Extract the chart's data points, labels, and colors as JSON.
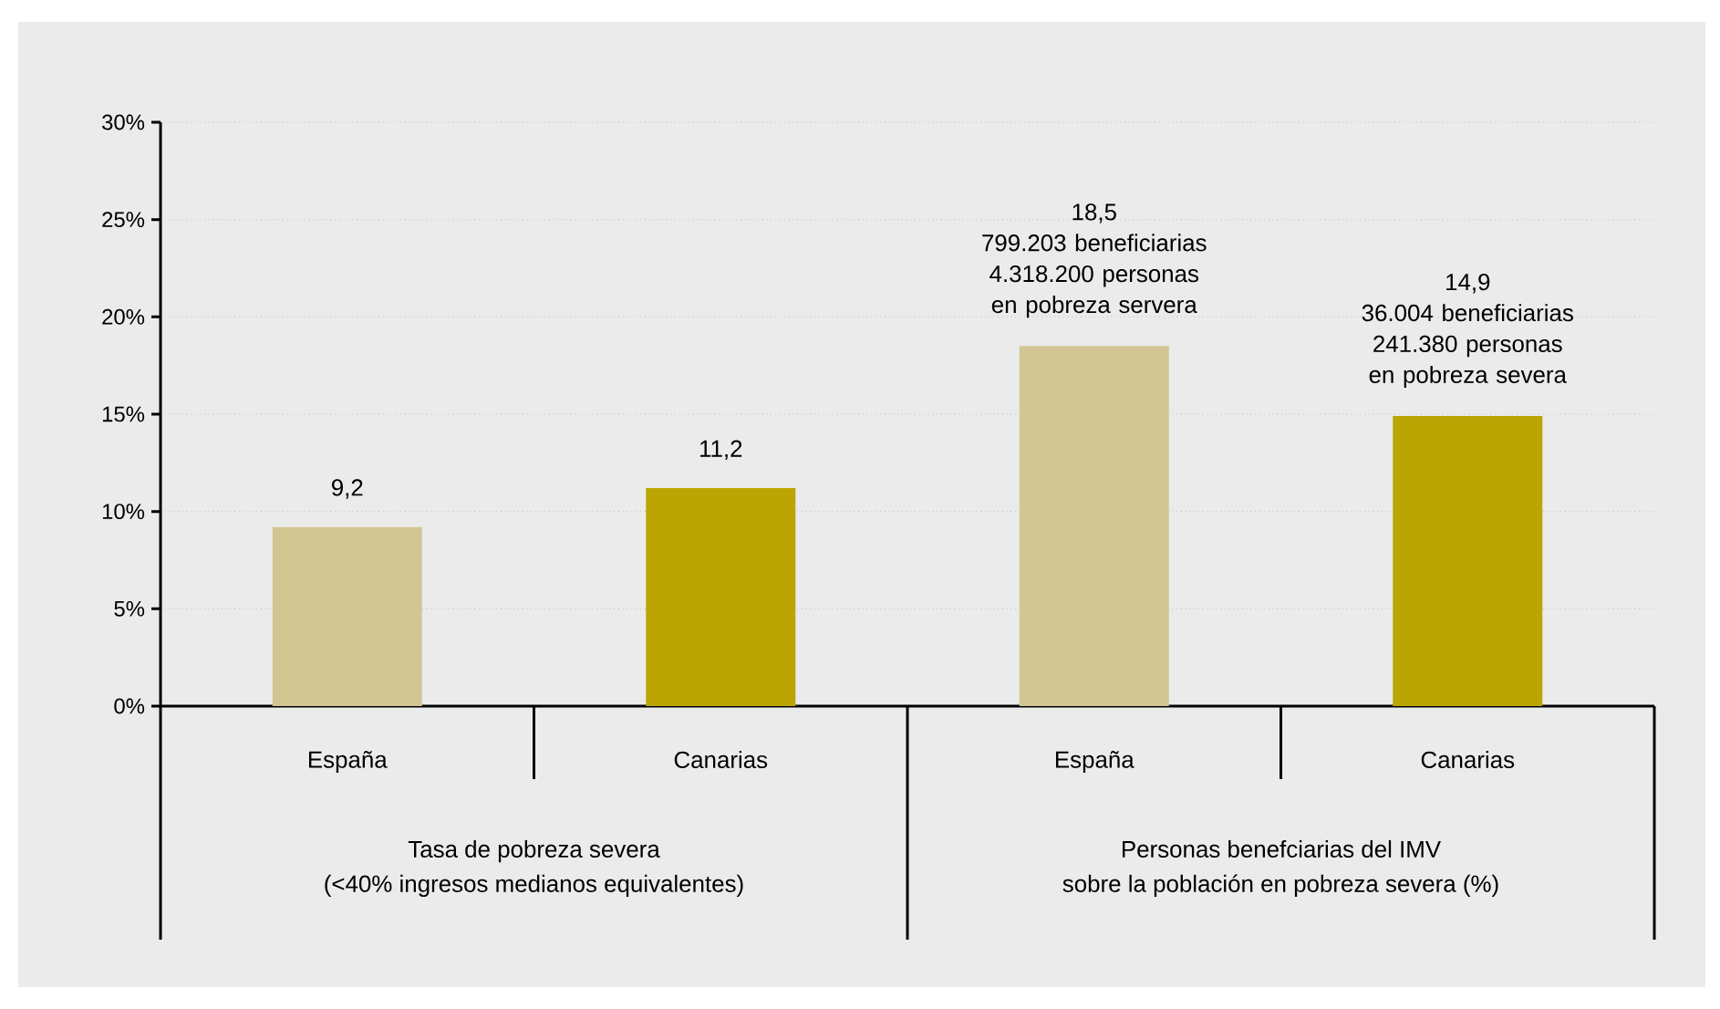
{
  "chart_data": {
    "type": "bar",
    "categories": [
      "España",
      "Canarias",
      "España",
      "Canarias"
    ],
    "values": [
      9.2,
      11.2,
      18.5,
      14.9
    ],
    "colors": [
      "#d2c692",
      "#bba502",
      "#d2c692",
      "#bba502"
    ],
    "value_labels": [
      [
        "9,2"
      ],
      [
        "11,2"
      ],
      [
        "18,5",
        "799.203 beneficiarias",
        "4.318.200 personas en pobreza servera"
      ],
      [
        "14,9",
        "36.004 beneficiarias",
        "241.380 personas en pobreza severa"
      ]
    ],
    "ylim": [
      0,
      30
    ],
    "yticks": [
      {
        "value": 0,
        "label": "0%"
      },
      {
        "value": 5,
        "label": "5%"
      },
      {
        "value": 10,
        "label": "10%"
      },
      {
        "value": 15,
        "label": "15%"
      },
      {
        "value": 20,
        "label": "20%"
      },
      {
        "value": 25,
        "label": "25%"
      },
      {
        "value": 30,
        "label": "30%"
      }
    ],
    "grid": "y",
    "annotations": [
      "Tasa de pobreza severa",
      "(<40% ingresos medianos equivalentes)",
      "Personas benefciarias del IMV",
      "sobre la población en pobreza severa (%)"
    ]
  }
}
